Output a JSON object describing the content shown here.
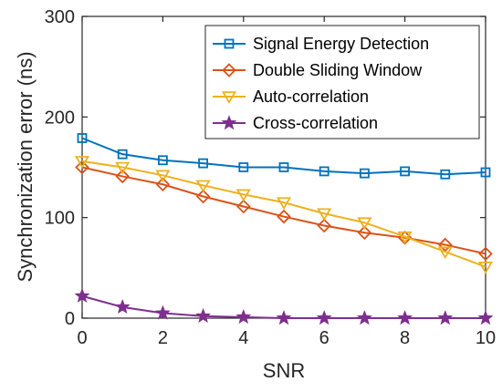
{
  "chart_data": {
    "type": "line",
    "xlabel": "SNR",
    "ylabel": "Synchronization error (ns)",
    "xlim": [
      0,
      10
    ],
    "ylim": [
      0,
      300
    ],
    "xticks": [
      0,
      2,
      4,
      6,
      8,
      10
    ],
    "yticks": [
      0,
      100,
      200,
      300
    ],
    "grid": false,
    "legend_position": "top-right",
    "x": [
      0,
      1,
      2,
      3,
      4,
      5,
      6,
      7,
      8,
      9,
      10
    ],
    "series": [
      {
        "name": "Signal Energy Detection",
        "color": "#0072BD",
        "marker": "square",
        "values": [
          179,
          163,
          157,
          154,
          150,
          150,
          146,
          144,
          146,
          143,
          145
        ]
      },
      {
        "name": "Double Sliding Window",
        "color": "#D95319",
        "marker": "diamond",
        "values": [
          150,
          141,
          133,
          121,
          111,
          101,
          92,
          85,
          80,
          73,
          64
        ]
      },
      {
        "name": "Auto-correlation",
        "color": "#EDB120",
        "marker": "triangle-down",
        "values": [
          156,
          150,
          142,
          132,
          123,
          115,
          104,
          95,
          81,
          66,
          51
        ]
      },
      {
        "name": "Cross-correlation",
        "color": "#7E2F8E",
        "marker": "star",
        "values": [
          22,
          11,
          5,
          2,
          1,
          0,
          0,
          0,
          0,
          0,
          0
        ]
      }
    ]
  }
}
